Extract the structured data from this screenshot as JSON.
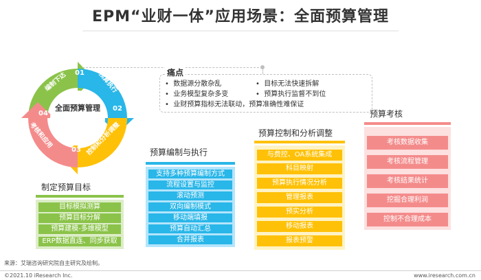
{
  "title": "EPM“业财一体”应用场景：全面预算管理",
  "cycle": {
    "center": "全面预算管理",
    "steps": [
      {
        "num": "01",
        "label": "编制下达",
        "color": "#8bc34a"
      },
      {
        "num": "02",
        "label": "预算执行",
        "color": "#29b6e8"
      },
      {
        "num": "03",
        "label": "控制和分析调整",
        "color": "#ffc107"
      },
      {
        "num": "04",
        "label": "考核和应用",
        "color": "#f48b8b"
      }
    ]
  },
  "pain": {
    "title": "痛点",
    "items": [
      "数据源分散杂乱",
      "目标无法快速拆解",
      "业务模型复杂多变",
      "预算执行监督不到位",
      "业财预算指标无法联动，预算准确性难保证"
    ]
  },
  "sections": {
    "target": {
      "title": "制定预算目标",
      "color": "#8bc34a",
      "items": [
        "目标模拟测算",
        "预算目标分解",
        "预算建模-多维模型",
        "ERP数据直连、同步获取"
      ]
    },
    "execute": {
      "title": "预算编制与执行",
      "color": "#29b6e8",
      "items": [
        "支持多种预算编制方式",
        "流程设置与监控",
        "滚动预测",
        "双向编制模式",
        "移动端填报",
        "预算自动汇总",
        "合并报表"
      ]
    },
    "control": {
      "title": "预算控制和分析调整",
      "color": "#ffc107",
      "items": [
        "与费控、OA系统集成",
        "科目映射",
        "预算执行情况分析",
        "管理报表",
        "预实分析",
        "移动报表",
        "报表预警"
      ]
    },
    "assess": {
      "title": "预算考核",
      "color": "#f48b8b",
      "items": [
        "考核数据收集",
        "考核流程管理",
        "考核结果统计",
        "挖掘合理利润",
        "控制不合理成本"
      ]
    }
  },
  "footer": {
    "source": "来源：艾瑞咨询研究院自主研究及绘制。",
    "copyright": "©2021.10 iResearch Inc.",
    "url": "www.iresearch.com.cn"
  }
}
